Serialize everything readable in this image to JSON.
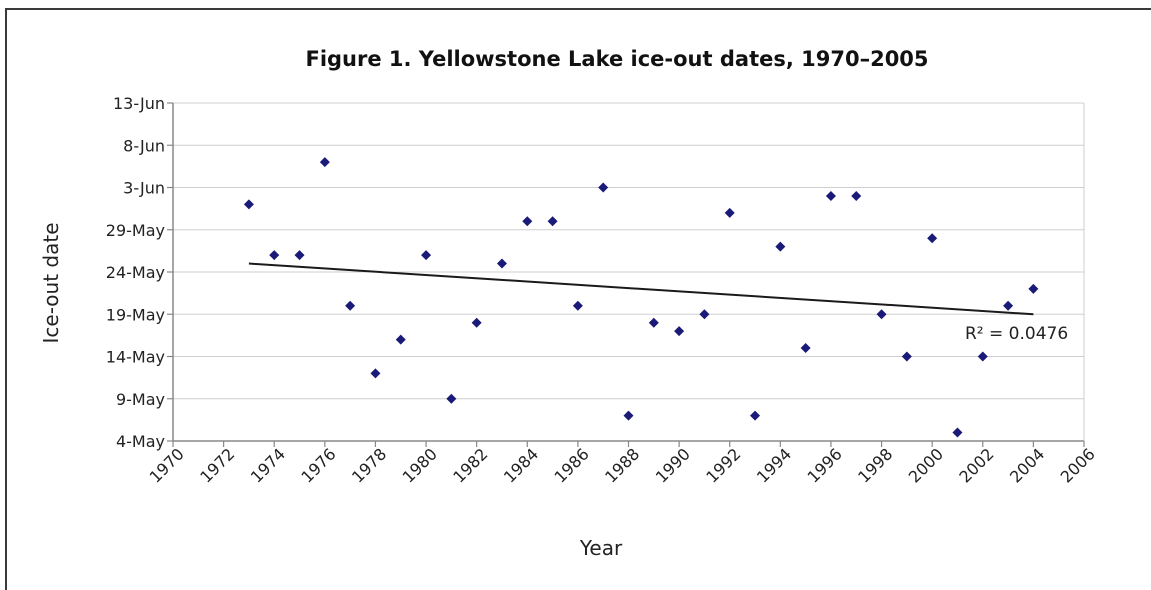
{
  "chart_data": {
    "type": "scatter",
    "title": "Figure 1. Yellowstone Lake ice-out dates, 1970–2005",
    "xlabel": "Year",
    "ylabel": "Ice-out date",
    "xlim": [
      1970,
      2006
    ],
    "x_ticks": [
      "1970",
      "1972",
      "1974",
      "1976",
      "1978",
      "1980",
      "1982",
      "1984",
      "1986",
      "1988",
      "1990",
      "1992",
      "1994",
      "1996",
      "1998",
      "2000",
      "2002",
      "2004",
      "2006"
    ],
    "ylim": [
      "4-May",
      "13-Jun"
    ],
    "y_ticks": [
      "4-May",
      "9-May",
      "14-May",
      "19-May",
      "24-May",
      "29-May",
      "3-Jun",
      "8-Jun",
      "13-Jun"
    ],
    "grid": true,
    "series": [
      {
        "color": "#1a1a78",
        "points": [
          {
            "x": 1973,
            "y": "1-Jun"
          },
          {
            "x": 1974,
            "y": "26-May"
          },
          {
            "x": 1975,
            "y": "26-May"
          },
          {
            "x": 1976,
            "y": "6-Jun"
          },
          {
            "x": 1977,
            "y": "20-May"
          },
          {
            "x": 1978,
            "y": "12-May"
          },
          {
            "x": 1979,
            "y": "16-May"
          },
          {
            "x": 1980,
            "y": "26-May"
          },
          {
            "x": 1981,
            "y": "9-May"
          },
          {
            "x": 1982,
            "y": "18-May"
          },
          {
            "x": 1983,
            "y": "25-May"
          },
          {
            "x": 1984,
            "y": "30-May"
          },
          {
            "x": 1985,
            "y": "30-May"
          },
          {
            "x": 1986,
            "y": "20-May"
          },
          {
            "x": 1987,
            "y": "3-Jun"
          },
          {
            "x": 1988,
            "y": "7-May"
          },
          {
            "x": 1989,
            "y": "18-May"
          },
          {
            "x": 1990,
            "y": "17-May"
          },
          {
            "x": 1991,
            "y": "19-May"
          },
          {
            "x": 1992,
            "y": "31-May"
          },
          {
            "x": 1993,
            "y": "7-May"
          },
          {
            "x": 1994,
            "y": "27-May"
          },
          {
            "x": 1995,
            "y": "15-May"
          },
          {
            "x": 1996,
            "y": "2-Jun"
          },
          {
            "x": 1997,
            "y": "2-Jun"
          },
          {
            "x": 1998,
            "y": "19-May"
          },
          {
            "x": 1999,
            "y": "14-May"
          },
          {
            "x": 2000,
            "y": "28-May"
          },
          {
            "x": 2001,
            "y": "5-May"
          },
          {
            "x": 2002,
            "y": "14-May"
          },
          {
            "x": 2003,
            "y": "20-May"
          },
          {
            "x": 2004,
            "y": "22-May"
          }
        ]
      }
    ],
    "trendline": {
      "type": "linear",
      "color": "#1a1a1a",
      "start": {
        "x": 1973,
        "y": "25-May"
      },
      "end": {
        "x": 2004,
        "y": "19-May"
      },
      "label": "R² = 0.0476"
    }
  }
}
